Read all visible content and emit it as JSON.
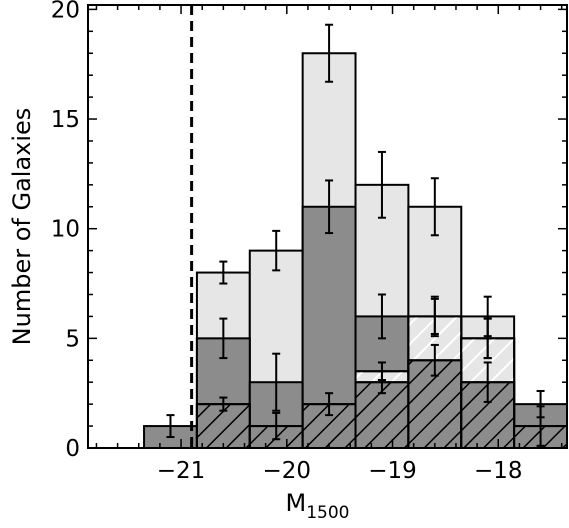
{
  "chart_data": {
    "type": "bar",
    "subtype": "stepped-histogram",
    "xlabel": "M",
    "xlabel_sub": "1500",
    "ylabel": "Number of Galaxies",
    "xlim": [
      -21.88,
      -17.35
    ],
    "ylim": [
      0,
      20.2
    ],
    "x_ticks": [
      -21,
      -20,
      -19,
      -18
    ],
    "x_tick_labels": [
      "−21",
      "−20",
      "−19",
      "−18"
    ],
    "y_ticks": [
      0,
      5,
      10,
      15,
      20
    ],
    "y_tick_labels": [
      "0",
      "5",
      "10",
      "15",
      "20"
    ],
    "vertical_reference_line": {
      "x": -20.9,
      "style": "dashed",
      "color": "#000000"
    },
    "bin_edges": [
      -21.35,
      -20.85,
      -20.35,
      -19.85,
      -19.35,
      -18.85,
      -18.35,
      -17.85,
      -17.35
    ],
    "series": [
      {
        "key": "light",
        "fill": "#e6e6e6",
        "values": [
          0,
          8,
          9,
          18,
          12,
          11,
          6,
          0
        ],
        "errors": [
          null,
          0.5,
          0.9,
          1.3,
          1.5,
          1.3,
          0.9,
          null
        ],
        "hatched": false
      },
      {
        "key": "dark",
        "fill": "#8c8c8c",
        "values": [
          1,
          5,
          3,
          11,
          6,
          6,
          5,
          2
        ],
        "errors": [
          0.5,
          0.9,
          1.3,
          1.2,
          1.0,
          0.8,
          0.9,
          0.6
        ],
        "hatched": false
      },
      {
        "key": "light-hatched",
        "fill": "#e6e6e6",
        "hatch_color": "#ffffff",
        "values": [
          0,
          0,
          0,
          0,
          3.5,
          6,
          5,
          0
        ],
        "errors": [
          null,
          null,
          null,
          null,
          0.4,
          0.9,
          0.9,
          null
        ],
        "hatched": true
      },
      {
        "key": "dark-hatched",
        "fill": "#8c8c8c",
        "hatch_color": "#000000",
        "values": [
          0,
          2,
          1,
          2,
          3,
          4,
          3,
          1
        ],
        "errors": [
          null,
          0.3,
          0.6,
          0.5,
          0.5,
          0.7,
          0.9,
          0.9
        ],
        "hatched": true
      }
    ]
  }
}
